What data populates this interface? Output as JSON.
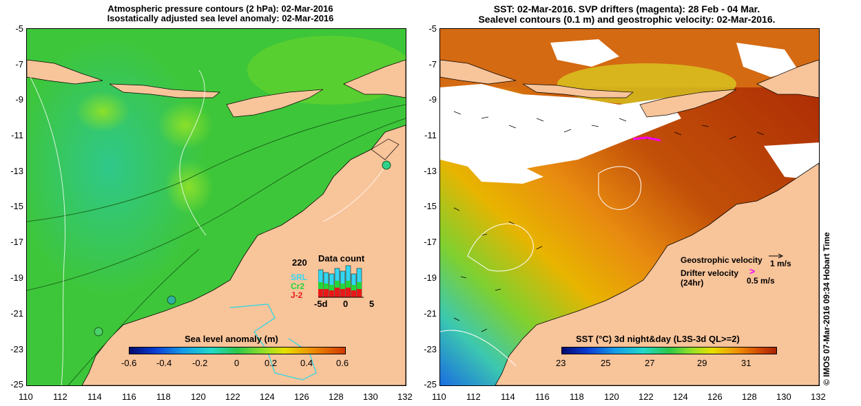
{
  "left_panel": {
    "title_line1": "Atmospheric pressure contours (2 hPa): 02-Mar-2016",
    "title_line2": "Isostatically adjusted sea level anomaly: 02-Mar-2016",
    "colorbar_title": "Sea level anomaly (m)",
    "colorbar_ticks": [
      "-0.6",
      "-0.4",
      "-0.2",
      "0",
      "0.2",
      "0.4",
      "0.6"
    ],
    "data_count": {
      "title": "Data count",
      "max_label": "220",
      "legend": [
        "SRL",
        "Cr2",
        "J-2"
      ],
      "legend_colors": [
        "#33d6f0",
        "#22d63a",
        "#e81818"
      ],
      "x_ticks": [
        "-5d",
        "0",
        "5"
      ]
    }
  },
  "right_panel": {
    "title_line1": "SST: 02-Mar-2016. SVP drifters (magenta): 28 Feb - 04 Mar.",
    "title_line2": "Sealevel contours (0.1 m) and geostrophic velocity: 02-Mar-2016.",
    "colorbar_title": "SST (°C) 3d night&day (L3S-3d QL>=2)",
    "colorbar_ticks": [
      "23",
      "25",
      "27",
      "29",
      "31"
    ],
    "geo_velocity_label": "Geostrophic velocity",
    "geo_velocity_scale": "1 m/s",
    "drifter_velocity_label": "Drifter velocity",
    "drifter_velocity_sub": "(24hr)",
    "drifter_velocity_scale": "0.5 m/s"
  },
  "y_ticks": [
    "-5",
    "-7",
    "-9",
    "-11",
    "-13",
    "-15",
    "-17",
    "-19",
    "-21",
    "-23",
    "-25"
  ],
  "x_ticks": [
    "110",
    "112",
    "114",
    "116",
    "118",
    "120",
    "122",
    "124",
    "126",
    "128",
    "130",
    "132"
  ],
  "credit": "© IMOS 07-Mar-2016 09:34 Hobart Time",
  "colors": {
    "land": "#f8c49a",
    "ocean_green": "#3ec63a",
    "sst_red": "#b12a06"
  }
}
